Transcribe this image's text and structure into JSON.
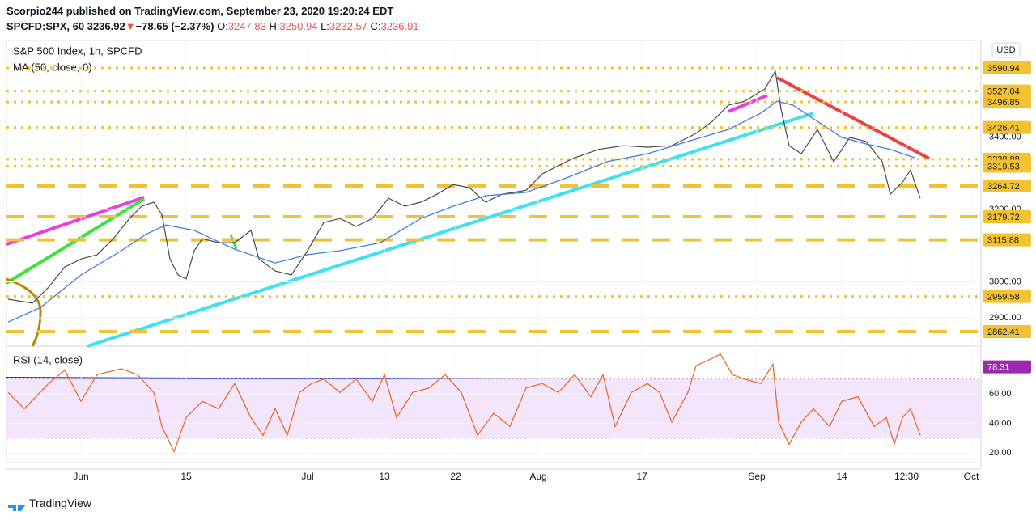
{
  "header": {
    "publisher": "Scorpio244 published on TradingView.com, September 23, 2020 19:20:24 EDT",
    "symbol": "SPCFD:SPX, 60",
    "last": "3236.92",
    "arrow": "▼",
    "change": "−78.65 (−2.37%)",
    "ohlc": [
      {
        "label": "O:",
        "value": "3247.83"
      },
      {
        "label": "H:",
        "value": "3250.94"
      },
      {
        "label": "L:",
        "value": "3232.57"
      },
      {
        "label": "C:",
        "value": "3236.91"
      }
    ],
    "brand": "TradingView"
  },
  "chart_data": [
    {
      "type": "line",
      "title": "S&P 500 Index, 1h, SPCFD",
      "currency": "USD",
      "xlim": [
        8,
        1212
      ],
      "ylim": [
        2829,
        3667
      ],
      "xticks": [
        {
          "value": 100,
          "label": "Jun"
        },
        {
          "value": 230,
          "label": "15"
        },
        {
          "value": 380,
          "label": "Jul"
        },
        {
          "value": 475,
          "label": "13"
        },
        {
          "value": 563,
          "label": "22"
        },
        {
          "value": 665,
          "label": "Aug"
        },
        {
          "value": 793,
          "label": "17"
        },
        {
          "value": 935,
          "label": "Sep"
        },
        {
          "value": 1040,
          "label": "14"
        },
        {
          "value": 1120,
          "label": "12:30"
        },
        {
          "value": 1200,
          "label": "Oct"
        }
      ],
      "yticks": [
        {
          "value": 3400,
          "label": "3400.00"
        },
        {
          "value": 3200,
          "label": "3200.00"
        },
        {
          "value": 3000,
          "label": "3000.00"
        },
        {
          "value": 2900,
          "label": "2900.00"
        }
      ],
      "grid": true,
      "levels": [
        {
          "value": 3590.94,
          "style": "dotted"
        },
        {
          "value": 3527.04,
          "style": "dotted"
        },
        {
          "value": 3496.85,
          "style": "dotted"
        },
        {
          "value": 3426.41,
          "style": "dotted"
        },
        {
          "value": 3338.88,
          "style": "dotted"
        },
        {
          "value": 3319.53,
          "style": "dotted"
        },
        {
          "value": 3264.72,
          "style": "dashed"
        },
        {
          "value": 3179.72,
          "style": "dashed"
        },
        {
          "value": 3115.88,
          "style": "dashed"
        },
        {
          "value": 2959.58,
          "style": "dotted"
        },
        {
          "value": 2862.41,
          "style": "dashed"
        }
      ],
      "level_color": "#f2c230",
      "series": [
        {
          "color": "#4a4a4a",
          "x": [
            10,
            40,
            60,
            80,
            100,
            120,
            140,
            160,
            175,
            190,
            200,
            210,
            220,
            230,
            240,
            250,
            270,
            290,
            310,
            320,
            340,
            360,
            380,
            400,
            420,
            440,
            460,
            480,
            500,
            520,
            540,
            560,
            580,
            600,
            620,
            650,
            670,
            690,
            710,
            740,
            770,
            800,
            830,
            860,
            880,
            900,
            920,
            945,
            958,
            965,
            975,
            990,
            1010,
            1030,
            1050,
            1070,
            1090,
            1100,
            1115,
            1125,
            1137
          ],
          "values": [
            2952,
            2941,
            2985,
            3041,
            3063,
            3075,
            3119,
            3175,
            3209,
            3220,
            3186,
            3063,
            3019,
            3008,
            3086,
            3119,
            3108,
            3108,
            3142,
            3063,
            3030,
            3019,
            3086,
            3164,
            3175,
            3153,
            3175,
            3231,
            3209,
            3220,
            3242,
            3269,
            3260,
            3220,
            3242,
            3253,
            3298,
            3321,
            3343,
            3366,
            3376,
            3372,
            3376,
            3410,
            3443,
            3488,
            3499,
            3533,
            3582,
            3477,
            3376,
            3354,
            3421,
            3332,
            3399,
            3388,
            3332,
            3242,
            3275,
            3309,
            3231
          ]
        },
        {
          "name": "MA (50, close, 0)",
          "color": "#3f7fd8",
          "x": [
            10,
            50,
            100,
            150,
            180,
            205,
            240,
            290,
            340,
            380,
            420,
            470,
            520,
            560,
            600,
            650,
            700,
            750,
            800,
            850,
            900,
            940,
            960,
            980,
            1010,
            1040,
            1070,
            1100,
            1130
          ],
          "values": [
            2889,
            2929,
            3019,
            3086,
            3131,
            3157,
            3142,
            3090,
            3052,
            3075,
            3086,
            3108,
            3175,
            3209,
            3238,
            3247,
            3287,
            3332,
            3354,
            3388,
            3421,
            3466,
            3499,
            3488,
            3443,
            3399,
            3381,
            3366,
            3343
          ]
        }
      ]
    },
    {
      "type": "line",
      "title": "RSI (14, close)",
      "xlim": [
        8,
        1212
      ],
      "ylim": [
        13.6,
        90.1
      ],
      "yticks": [
        {
          "value": 60,
          "label": "60.00"
        },
        {
          "value": 40,
          "label": "40.00"
        },
        {
          "value": 20,
          "label": "20.00"
        }
      ],
      "bands": [
        70,
        30
      ],
      "band_color": "#f3e5fb",
      "marker_value": 78.31,
      "marker_color": "#9c27b0",
      "series": [
        {
          "color": "#f06a2c",
          "x": [
            10,
            30,
            60,
            80,
            100,
            120,
            150,
            170,
            190,
            200,
            215,
            230,
            250,
            270,
            290,
            310,
            325,
            340,
            355,
            370,
            385,
            400,
            420,
            440,
            460,
            475,
            490,
            510,
            530,
            550,
            570,
            590,
            610,
            630,
            650,
            670,
            690,
            710,
            730,
            745,
            760,
            780,
            800,
            815,
            830,
            850,
            860,
            880,
            890,
            905,
            920,
            940,
            955,
            962,
            975,
            990,
            1005,
            1025,
            1040,
            1060,
            1080,
            1095,
            1105,
            1115,
            1125,
            1137
          ],
          "values": [
            61,
            50,
            67,
            76,
            55,
            73,
            77,
            73,
            61,
            38,
            21,
            44,
            55,
            50,
            67,
            44,
            32,
            50,
            32,
            61,
            67,
            70,
            61,
            70,
            55,
            73,
            44,
            61,
            64,
            73,
            61,
            32,
            47,
            38,
            64,
            67,
            61,
            73,
            58,
            73,
            38,
            61,
            67,
            61,
            41,
            61,
            79,
            84,
            87,
            73,
            70,
            67,
            80,
            41,
            26,
            41,
            50,
            38,
            55,
            58,
            38,
            44,
            26,
            44,
            50,
            32
          ]
        }
      ]
    }
  ]
}
